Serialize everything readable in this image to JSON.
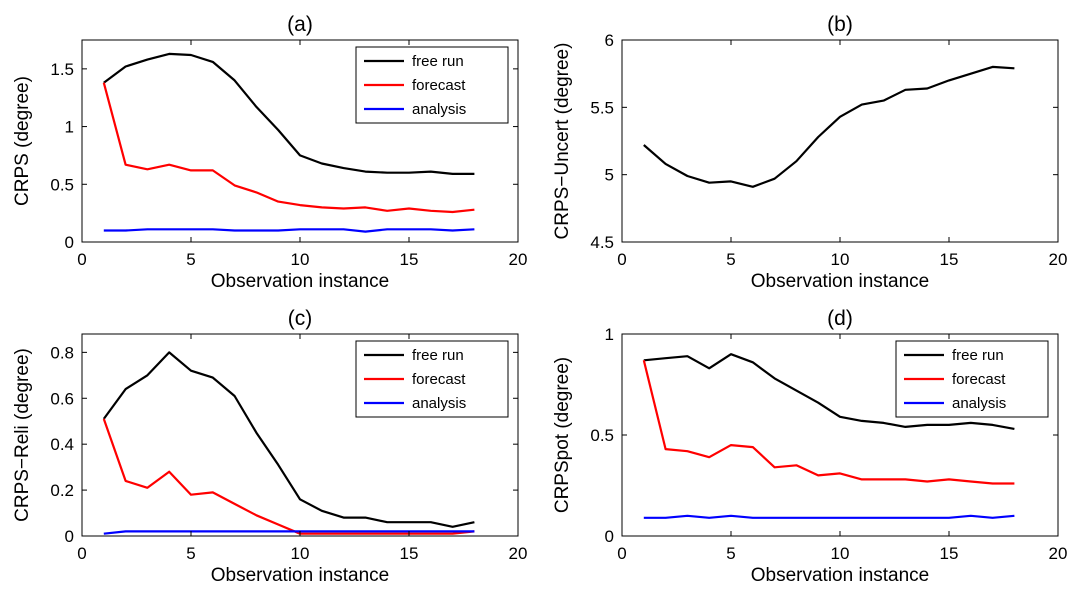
{
  "chart_data": [
    {
      "type": "line",
      "title": "(a)",
      "xlabel": "Observation instance",
      "ylabel": "CRPS (degree)",
      "xlim": [
        0,
        20
      ],
      "ylim": [
        0,
        1.75
      ],
      "xticks": [
        0,
        5,
        10,
        15,
        20
      ],
      "yticks": [
        0,
        0.5,
        1,
        1.5
      ],
      "ytick_labels": [
        "0",
        "0.5",
        "1",
        "1.5"
      ],
      "grid": false,
      "legend_position": "top-right",
      "x": [
        1,
        2,
        3,
        4,
        5,
        6,
        7,
        8,
        9,
        10,
        11,
        12,
        13,
        14,
        15,
        16,
        17,
        18
      ],
      "series": [
        {
          "name": "free run",
          "color": "#000000",
          "values": [
            1.38,
            1.52,
            1.58,
            1.63,
            1.62,
            1.56,
            1.4,
            1.17,
            0.97,
            0.75,
            0.68,
            0.64,
            0.61,
            0.6,
            0.6,
            0.61,
            0.59,
            0.59
          ]
        },
        {
          "name": "forecast",
          "color": "#ff0000",
          "values": [
            1.38,
            0.67,
            0.63,
            0.67,
            0.62,
            0.62,
            0.49,
            0.43,
            0.35,
            0.32,
            0.3,
            0.29,
            0.3,
            0.27,
            0.29,
            0.27,
            0.26,
            0.28
          ]
        },
        {
          "name": "analysis",
          "color": "#0000ff",
          "values": [
            0.1,
            0.1,
            0.11,
            0.11,
            0.11,
            0.11,
            0.1,
            0.1,
            0.1,
            0.11,
            0.11,
            0.11,
            0.09,
            0.11,
            0.11,
            0.11,
            0.1,
            0.11
          ]
        }
      ]
    },
    {
      "type": "line",
      "title": "(b)",
      "xlabel": "Observation instance",
      "ylabel": "CRPS−Uncert (degree)",
      "xlim": [
        0,
        20
      ],
      "ylim": [
        4.5,
        6
      ],
      "xticks": [
        0,
        5,
        10,
        15,
        20
      ],
      "yticks": [
        4.5,
        5,
        5.5,
        6
      ],
      "ytick_labels": [
        "4.5",
        "5",
        "5.5",
        "6"
      ],
      "grid": false,
      "legend_position": "none",
      "x": [
        1,
        2,
        3,
        4,
        5,
        6,
        7,
        8,
        9,
        10,
        11,
        12,
        13,
        14,
        15,
        16,
        17,
        18
      ],
      "series": [
        {
          "color": "#000000",
          "values": [
            5.22,
            5.08,
            4.99,
            4.94,
            4.95,
            4.91,
            4.97,
            5.1,
            5.28,
            5.43,
            5.52,
            5.55,
            5.63,
            5.64,
            5.7,
            5.75,
            5.8,
            5.79
          ]
        }
      ]
    },
    {
      "type": "line",
      "title": "(c)",
      "xlabel": "Observation instance",
      "ylabel": "CRPS−Reli (degree)",
      "xlim": [
        0,
        20
      ],
      "ylim": [
        0,
        0.88
      ],
      "xticks": [
        0,
        5,
        10,
        15,
        20
      ],
      "yticks": [
        0,
        0.2,
        0.4,
        0.6,
        0.8
      ],
      "ytick_labels": [
        "0",
        "0.2",
        "0.4",
        "0.6",
        "0.8"
      ],
      "grid": false,
      "legend_position": "top-right",
      "x": [
        1,
        2,
        3,
        4,
        5,
        6,
        7,
        8,
        9,
        10,
        11,
        12,
        13,
        14,
        15,
        16,
        17,
        18
      ],
      "series": [
        {
          "name": "free run",
          "color": "#000000",
          "values": [
            0.51,
            0.64,
            0.7,
            0.8,
            0.72,
            0.69,
            0.61,
            0.45,
            0.31,
            0.16,
            0.11,
            0.08,
            0.08,
            0.06,
            0.06,
            0.06,
            0.04,
            0.06
          ]
        },
        {
          "name": "forecast",
          "color": "#ff0000",
          "values": [
            0.51,
            0.24,
            0.21,
            0.28,
            0.18,
            0.19,
            0.14,
            0.09,
            0.05,
            0.01,
            0.01,
            0.01,
            0.01,
            0.01,
            0.01,
            0.01,
            0.01,
            0.02
          ]
        },
        {
          "name": "analysis",
          "color": "#0000ff",
          "values": [
            0.01,
            0.02,
            0.02,
            0.02,
            0.02,
            0.02,
            0.02,
            0.02,
            0.02,
            0.02,
            0.02,
            0.02,
            0.02,
            0.02,
            0.02,
            0.02,
            0.02,
            0.02
          ]
        }
      ]
    },
    {
      "type": "line",
      "title": "(d)",
      "xlabel": "Observation instance",
      "ylabel": "CRPSpot (degree)",
      "xlim": [
        0,
        20
      ],
      "ylim": [
        0,
        1
      ],
      "xticks": [
        0,
        5,
        10,
        15,
        20
      ],
      "yticks": [
        0,
        0.5,
        1
      ],
      "ytick_labels": [
        "0",
        "0.5",
        "1"
      ],
      "grid": false,
      "legend_position": "top-right",
      "x": [
        1,
        2,
        3,
        4,
        5,
        6,
        7,
        8,
        9,
        10,
        11,
        12,
        13,
        14,
        15,
        16,
        17,
        18
      ],
      "series": [
        {
          "name": "free run",
          "color": "#000000",
          "values": [
            0.87,
            0.88,
            0.89,
            0.83,
            0.9,
            0.86,
            0.78,
            0.72,
            0.66,
            0.59,
            0.57,
            0.56,
            0.54,
            0.55,
            0.55,
            0.56,
            0.55,
            0.53
          ]
        },
        {
          "name": "forecast",
          "color": "#ff0000",
          "values": [
            0.87,
            0.43,
            0.42,
            0.39,
            0.45,
            0.44,
            0.34,
            0.35,
            0.3,
            0.31,
            0.28,
            0.28,
            0.28,
            0.27,
            0.28,
            0.27,
            0.26,
            0.26
          ]
        },
        {
          "name": "analysis",
          "color": "#0000ff",
          "values": [
            0.09,
            0.09,
            0.1,
            0.09,
            0.1,
            0.09,
            0.09,
            0.09,
            0.09,
            0.09,
            0.09,
            0.09,
            0.09,
            0.09,
            0.09,
            0.1,
            0.09,
            0.1
          ]
        }
      ]
    }
  ]
}
